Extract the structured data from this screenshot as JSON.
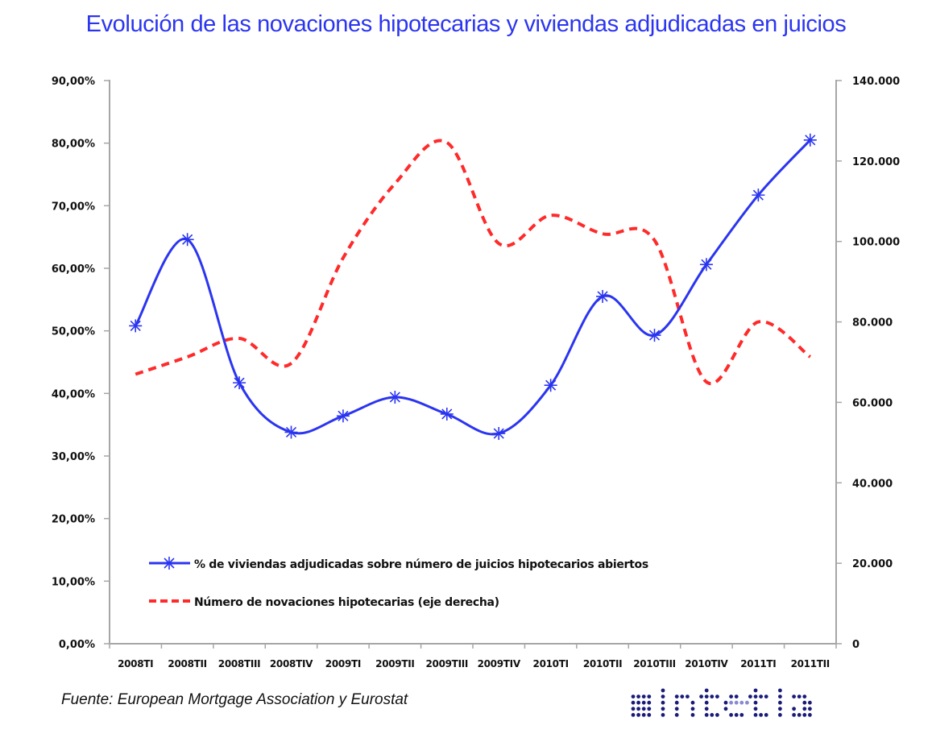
{
  "title": "Evolución de las novaciones hipotecarias y viviendas adjudicadas en juicios",
  "source": "Fuente: European Mortgage Association y Eurostat",
  "logo_text": "sintetia",
  "colors": {
    "title": "#2b35f0",
    "series_pct": "#2b35f0",
    "series_nov": "#ff2a2a",
    "axis": "#a6a6a6",
    "logo_dark": "#1a1a7a",
    "logo_light": "#8a8ad0"
  },
  "chart_data": {
    "type": "line",
    "title": "Evolución de las novaciones hipotecarias y viviendas adjudicadas en juicios",
    "categories": [
      "2008TI",
      "2008TII",
      "2008TIII",
      "2008TIV",
      "2009TI",
      "2009TII",
      "2009TIII",
      "2009TIV",
      "2010TI",
      "2010TII",
      "2010TIII",
      "2010TIV",
      "2011TI",
      "2011TII"
    ],
    "y_left": {
      "range": [
        0,
        90
      ],
      "ticks": [
        0,
        10,
        20,
        30,
        40,
        50,
        60,
        70,
        80,
        90
      ],
      "tick_labels": [
        "0,00%",
        "10,00%",
        "20,00%",
        "30,00%",
        "40,00%",
        "50,00%",
        "60,00%",
        "70,00%",
        "80,00%",
        "90,00%"
      ]
    },
    "y_right": {
      "range": [
        0,
        140000
      ],
      "ticks": [
        0,
        20000,
        40000,
        60000,
        80000,
        100000,
        120000,
        140000
      ],
      "tick_labels": [
        "0",
        "20.000",
        "40.000",
        "60.000",
        "80.000",
        "100.000",
        "120.000",
        "140.000"
      ]
    },
    "grid": false,
    "legend_position": "bottom-left-inside",
    "series": [
      {
        "name": "% de viviendas adjudicadas sobre número de juicios hipotecarios abiertos",
        "axis": "left",
        "style": "solid-smooth-asterisk-markers",
        "values": [
          50.8,
          64.6,
          41.7,
          33.8,
          36.4,
          39.4,
          36.7,
          33.6,
          41.3,
          55.5,
          49.3,
          60.6,
          71.7,
          80.5
        ]
      },
      {
        "name": "Número de novaciones hipotecarias (eje derecha)",
        "axis": "right",
        "style": "dashed-smooth",
        "values": [
          67000,
          71300,
          75900,
          69700,
          95900,
          114400,
          124600,
          99500,
          106500,
          101900,
          100300,
          65100,
          80000,
          71300
        ]
      }
    ]
  }
}
